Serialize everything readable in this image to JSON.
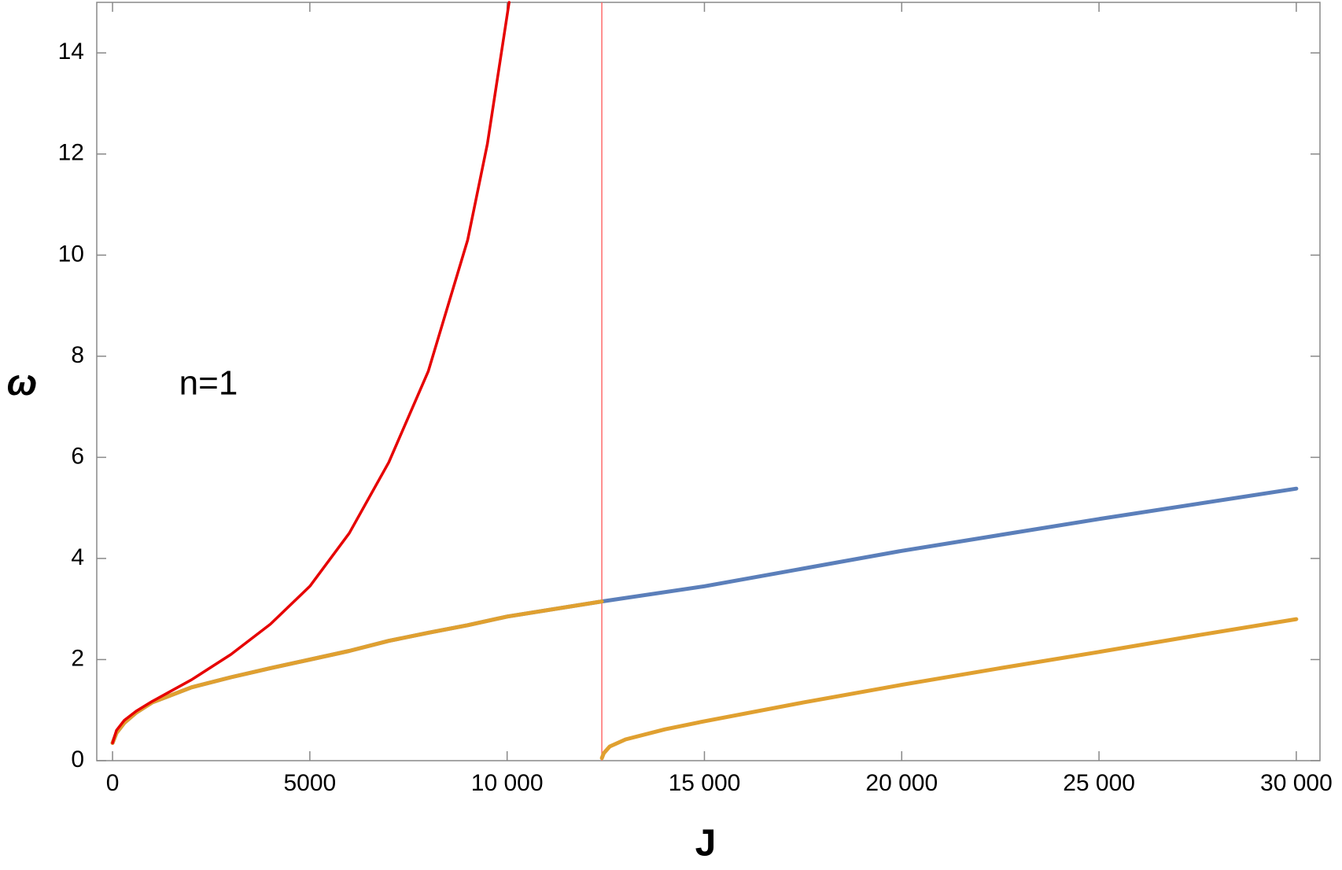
{
  "chart_data": {
    "type": "line",
    "xlabel": "J",
    "ylabel": "ω",
    "annotation": "n=1",
    "xlim": [
      -400,
      30600
    ],
    "ylim": [
      0,
      15
    ],
    "xticks": [
      0,
      5000,
      {
        "value": 10000,
        "label": "10 000"
      },
      {
        "value": 15000,
        "label": "15 000"
      },
      {
        "value": 20000,
        "label": "20 000"
      },
      {
        "value": 25000,
        "label": "25 000"
      },
      {
        "value": 30000,
        "label": "30 000"
      }
    ],
    "yticks": [
      0,
      2,
      4,
      6,
      8,
      10,
      12,
      14
    ],
    "vline": {
      "x": 12400,
      "color": "#ff6b6b"
    },
    "series": [
      {
        "color": "#e60000",
        "x": [
          0,
          100,
          300,
          600,
          1000,
          2000,
          3000,
          4000,
          5000,
          6000,
          7000,
          8000,
          9000,
          9500,
          10050
        ],
        "values": [
          0.35,
          0.6,
          0.8,
          0.98,
          1.17,
          1.6,
          2.1,
          2.7,
          3.45,
          4.5,
          5.9,
          7.7,
          10.3,
          12.2,
          15
        ]
      },
      {
        "color": "#5b7fba",
        "x": [
          0,
          100,
          300,
          600,
          1000,
          2000,
          3000,
          4000,
          5000,
          6000,
          7000,
          8000,
          9000,
          10000,
          12400,
          15000,
          20000,
          25000,
          30000
        ],
        "values": [
          0.35,
          0.55,
          0.75,
          0.95,
          1.15,
          1.45,
          1.65,
          1.83,
          2.0,
          2.17,
          2.37,
          2.53,
          2.68,
          2.85,
          3.15,
          3.45,
          4.15,
          4.78,
          5.38
        ]
      },
      {
        "color": "#e0a030",
        "x": [
          0,
          100,
          300,
          600,
          1000,
          2000,
          3000,
          4000,
          5000,
          6000,
          7000,
          8000,
          9000,
          10000,
          12400,
          12400,
          12400,
          12450,
          12600,
          13000,
          14000,
          15000,
          17500,
          20000,
          22500,
          25000,
          27500,
          30000
        ],
        "values": [
          0.35,
          0.55,
          0.75,
          0.95,
          1.15,
          1.45,
          1.65,
          1.83,
          2.0,
          2.17,
          2.37,
          2.53,
          2.68,
          2.85,
          3.15,
          null,
          0.05,
          0.15,
          0.28,
          0.42,
          0.62,
          0.78,
          1.15,
          1.5,
          1.83,
          2.15,
          2.48,
          2.8
        ]
      }
    ]
  }
}
